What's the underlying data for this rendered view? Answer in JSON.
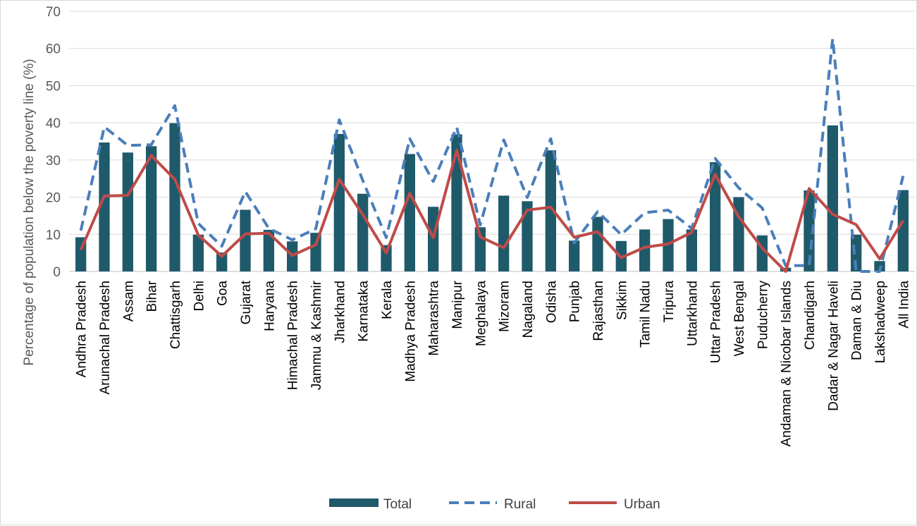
{
  "chart_data": {
    "type": "bar",
    "ylabel": "Percentage of population below the poverty line (%)",
    "xlabel": "",
    "ylim": [
      0,
      70
    ],
    "yticks": [
      0,
      10,
      20,
      30,
      40,
      50,
      60,
      70
    ],
    "grid": true,
    "legend_position": "bottom",
    "categories": [
      "Andhra Pradesh",
      "Arunachal Pradesh",
      "Assam",
      "Bihar",
      "Chattisgarh",
      "Delhi",
      "Goa",
      "Gujarat",
      "Haryana",
      "Himachal Pradesh",
      "Jammu & Kashmir",
      "Jharkhand",
      "Karnataka",
      "Kerala",
      "Madhya Pradesh",
      "Maharashtra",
      "Manipur",
      "Meghalaya",
      "Mizoram",
      "Nagaland",
      "Odisha",
      "Punjab",
      "Rajasthan",
      "Sikkim",
      "Tamil Nadu",
      "Tripura",
      "Uttarkhand",
      "Uttar Pradesh",
      "West Bengal",
      "Puducherry",
      "Andaman & Nicobar Islands",
      "Chandigarh",
      "Dadar & Nagar Haveli",
      "Daman & Diu",
      "Lakshadweep",
      "All India"
    ],
    "series": [
      {
        "name": "Total",
        "kind": "bar",
        "color": "#1f5a6b",
        "values": [
          9.2,
          34.7,
          32.0,
          33.7,
          39.9,
          9.9,
          5.1,
          16.6,
          11.2,
          8.1,
          10.4,
          37.0,
          20.9,
          7.1,
          31.6,
          17.4,
          36.9,
          11.9,
          20.4,
          18.9,
          32.6,
          8.3,
          14.7,
          8.2,
          11.3,
          14.1,
          11.3,
          29.4,
          20.0,
          9.7,
          1.0,
          21.8,
          39.3,
          9.9,
          2.8,
          21.9
        ]
      },
      {
        "name": "Rural",
        "kind": "line",
        "style": "dashed",
        "color": "#4a7ebb",
        "values": [
          11.0,
          38.9,
          33.9,
          34.1,
          44.6,
          12.9,
          6.8,
          21.5,
          11.6,
          8.5,
          11.5,
          40.8,
          24.5,
          9.1,
          35.7,
          24.2,
          38.8,
          12.5,
          35.4,
          19.9,
          35.7,
          7.7,
          16.1,
          9.9,
          15.8,
          16.5,
          11.6,
          30.4,
          22.5,
          17.1,
          1.6,
          1.6,
          62.6,
          0.0,
          0.0,
          25.7
        ]
      },
      {
        "name": "Urban",
        "kind": "line",
        "style": "solid",
        "color": "#be4b48",
        "values": [
          5.8,
          20.3,
          20.5,
          31.2,
          24.8,
          9.8,
          4.1,
          10.1,
          10.3,
          4.3,
          7.2,
          24.8,
          15.3,
          5.0,
          21.0,
          9.1,
          32.6,
          9.3,
          6.4,
          16.5,
          17.3,
          9.2,
          10.7,
          3.7,
          6.5,
          7.4,
          10.5,
          26.1,
          14.7,
          6.3,
          0.0,
          22.3,
          15.4,
          12.6,
          3.4,
          13.7
        ]
      }
    ]
  },
  "legend": {
    "total_label": "Total",
    "rural_label": "Rural",
    "urban_label": "Urban"
  }
}
